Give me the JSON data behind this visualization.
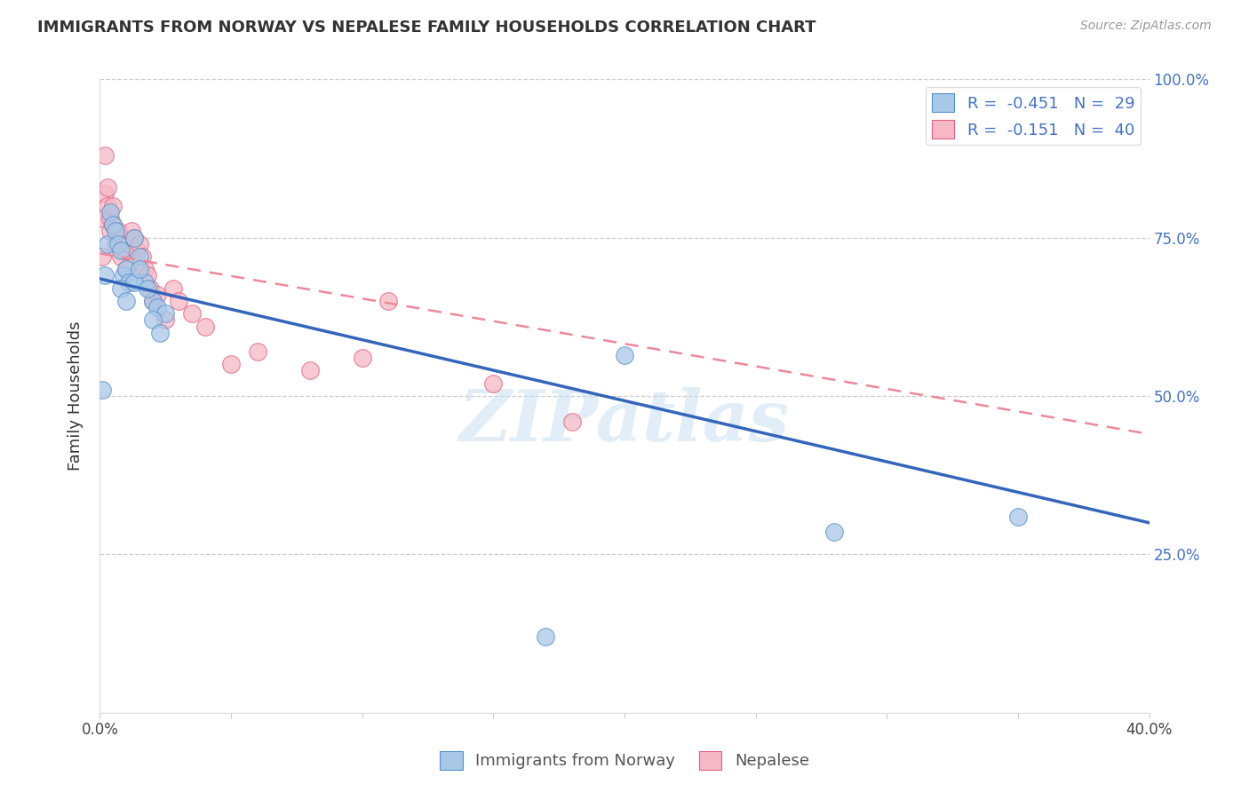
{
  "title": "IMMIGRANTS FROM NORWAY VS NEPALESE FAMILY HOUSEHOLDS CORRELATION CHART",
  "source": "Source: ZipAtlas.com",
  "ylabel": "Family Households",
  "xlim": [
    0.0,
    0.4
  ],
  "ylim": [
    0.0,
    1.0
  ],
  "xticks": [
    0.0,
    0.05,
    0.1,
    0.15,
    0.2,
    0.25,
    0.3,
    0.35,
    0.4
  ],
  "yticks": [
    0.0,
    0.25,
    0.5,
    0.75,
    1.0
  ],
  "ytick_labels_right": [
    "",
    "25.0%",
    "50.0%",
    "75.0%",
    "100.0%"
  ],
  "xtick_labels": [
    "0.0%",
    "",
    "",
    "",
    "",
    "",
    "",
    "",
    "40.0%"
  ],
  "legend_label_blue": "Immigrants from Norway",
  "legend_label_pink": "Nepalese",
  "blue_color": "#a8c8e8",
  "pink_color": "#f5b8c4",
  "blue_edge_color": "#5590c8",
  "pink_edge_color": "#e06080",
  "blue_line_color": "#3366bb",
  "pink_line_color": "#ee8899",
  "watermark": "ZIPatlas",
  "norway_x": [
    0.001,
    0.002,
    0.003,
    0.004,
    0.005,
    0.006,
    0.007,
    0.008,
    0.009,
    0.01,
    0.011,
    0.013,
    0.015,
    0.017,
    0.02,
    0.022,
    0.025,
    0.008,
    0.01,
    0.013,
    0.015,
    0.018,
    0.02,
    0.023,
    0.17,
    0.2,
    0.28,
    0.35
  ],
  "norway_y": [
    0.51,
    0.69,
    0.74,
    0.79,
    0.77,
    0.76,
    0.74,
    0.73,
    0.69,
    0.7,
    0.68,
    0.75,
    0.72,
    0.68,
    0.65,
    0.64,
    0.63,
    0.67,
    0.65,
    0.68,
    0.7,
    0.67,
    0.62,
    0.6,
    0.12,
    0.565,
    0.285,
    0.31
  ],
  "nepal_x": [
    0.001,
    0.001,
    0.002,
    0.002,
    0.003,
    0.003,
    0.004,
    0.004,
    0.005,
    0.005,
    0.006,
    0.007,
    0.008,
    0.008,
    0.009,
    0.01,
    0.01,
    0.011,
    0.012,
    0.013,
    0.014,
    0.015,
    0.016,
    0.017,
    0.018,
    0.019,
    0.02,
    0.022,
    0.025,
    0.028,
    0.03,
    0.035,
    0.04,
    0.05,
    0.06,
    0.08,
    0.1,
    0.11,
    0.15,
    0.18
  ],
  "nepal_y": [
    0.72,
    0.78,
    0.82,
    0.88,
    0.8,
    0.83,
    0.78,
    0.76,
    0.77,
    0.8,
    0.74,
    0.76,
    0.72,
    0.75,
    0.73,
    0.7,
    0.73,
    0.74,
    0.76,
    0.75,
    0.73,
    0.74,
    0.72,
    0.7,
    0.69,
    0.67,
    0.65,
    0.66,
    0.62,
    0.67,
    0.65,
    0.63,
    0.61,
    0.55,
    0.57,
    0.54,
    0.56,
    0.65,
    0.52,
    0.46
  ],
  "blue_line_x0": 0.0,
  "blue_line_x1": 0.4,
  "blue_line_y0": 0.685,
  "blue_line_y1": 0.3,
  "pink_line_x0": 0.0,
  "pink_line_x1": 0.4,
  "pink_line_y0": 0.725,
  "pink_line_y1": 0.44,
  "title_fontsize": 13,
  "axis_label_fontsize": 13,
  "tick_fontsize": 12,
  "legend_fontsize": 13
}
